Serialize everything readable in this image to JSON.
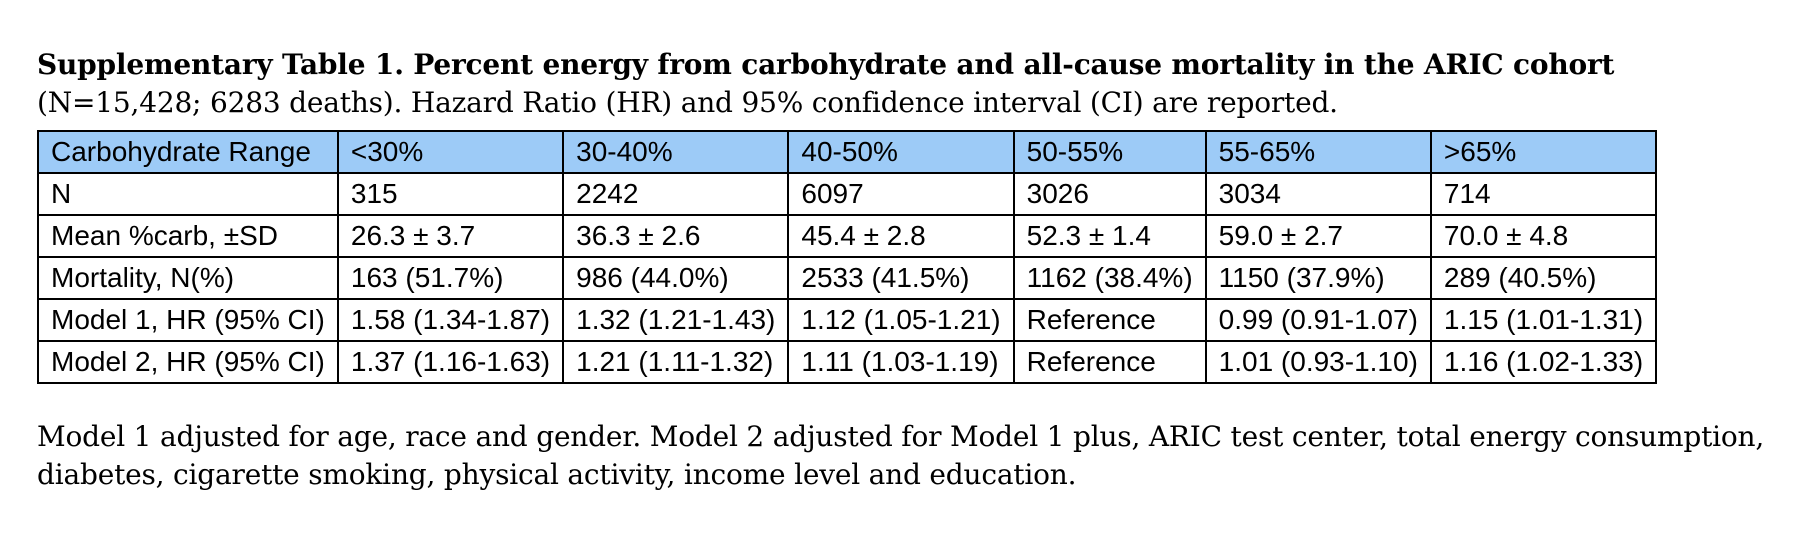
{
  "caption": {
    "bold_text": "Supplementary Table 1. Percent energy from carbohydrate and all-cause mortality in the ARIC cohort",
    "normal_text": " (N=15,428; 6283 deaths). Hazard Ratio (HR) and 95% confidence interval (CI) are reported."
  },
  "table": {
    "header": [
      "Carbohydrate Range",
      "<30%",
      "30-40%",
      "40-50%",
      "50-55%",
      "55-65%",
      ">65%"
    ],
    "rows": [
      [
        "N",
        "315",
        "2242",
        "6097",
        "3026",
        "3034",
        "714"
      ],
      [
        "Mean %carb, ±SD",
        "26.3 ± 3.7",
        "36.3 ± 2.6",
        "45.4 ± 2.8",
        "52.3 ± 1.4",
        "59.0 ± 2.7",
        "70.0 ± 4.8"
      ],
      [
        "Mortality, N(%)",
        "163 (51.7%)",
        "986 (44.0%)",
        "2533 (41.5%)",
        "1162 (38.4%)",
        "1150 (37.9%)",
        "289 (40.5%)"
      ],
      [
        "Model 1, HR (95% CI)",
        "1.58 (1.34-1.87)",
        "1.32 (1.21-1.43)",
        "1.12 (1.05-1.21)",
        "Reference",
        "0.99 (0.91-1.07)",
        "1.15 (1.01-1.31)"
      ],
      [
        "Model 2, HR (95% CI)",
        "1.37 (1.16-1.63)",
        "1.21 (1.11-1.32)",
        "1.11 (1.03-1.19)",
        "Reference",
        "1.01 (0.93-1.10)",
        "1.16 (1.02-1.33)"
      ]
    ]
  },
  "footnote": "Model 1 adjusted for age, race and gender. Model 2 adjusted for Model 1 plus, ARIC test center, total energy consumption, diabetes, cigarette smoking, physical activity, income level and education.",
  "colors": {
    "header_background": "#9dcbf7",
    "border": "#000000",
    "text": "#000000"
  }
}
